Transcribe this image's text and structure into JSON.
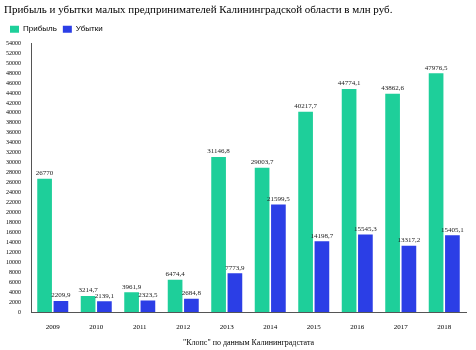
{
  "chart_data": {
    "type": "bar",
    "title": "Прибыль и убытки малых предпринимателей Калининградской области в млн руб.",
    "xlabel": "\"Клопс\" по данным Калининградстата",
    "categories": [
      "2009",
      "2010",
      "2011",
      "2012",
      "2013",
      "2014",
      "2015",
      "2016",
      "2017",
      "2018"
    ],
    "series": [
      {
        "name": "Прибыль",
        "color": "#1ecf9a",
        "values": [
          26770,
          3214.7,
          3961.9,
          6474.4,
          31146.8,
          29003.7,
          40217.7,
          44774.1,
          43862.6,
          47976.5
        ],
        "value_labels": [
          "26770",
          "3214,7",
          "3961,9",
          "6474,4",
          "31146,8",
          "29003,7",
          "40217,7",
          "44774,1",
          "43862,6",
          "47976,5"
        ]
      },
      {
        "name": "Убытки",
        "color": "#2b3ee6",
        "values": [
          2209.9,
          2139.1,
          2323.5,
          2684.8,
          7773.9,
          21599.5,
          14198.7,
          15545.3,
          13317.2,
          15405.1
        ],
        "value_labels": [
          "2209,9",
          "2139,1",
          "2323,5",
          "2684,8",
          "7773,9",
          "21599,5",
          "14198,7",
          "15545,3",
          "13317,2",
          "15405,1"
        ]
      }
    ],
    "ylim": [
      0,
      54000
    ],
    "yticks": [
      0,
      2000,
      4000,
      6000,
      8000,
      10000,
      12000,
      14000,
      16000,
      18000,
      20000,
      22000,
      24000,
      26000,
      28000,
      30000,
      32000,
      34000,
      36000,
      38000,
      40000,
      42000,
      44000,
      46000,
      48000,
      50000,
      52000,
      54000
    ],
    "grid": false,
    "legend": "top-left",
    "data_labels": true
  }
}
